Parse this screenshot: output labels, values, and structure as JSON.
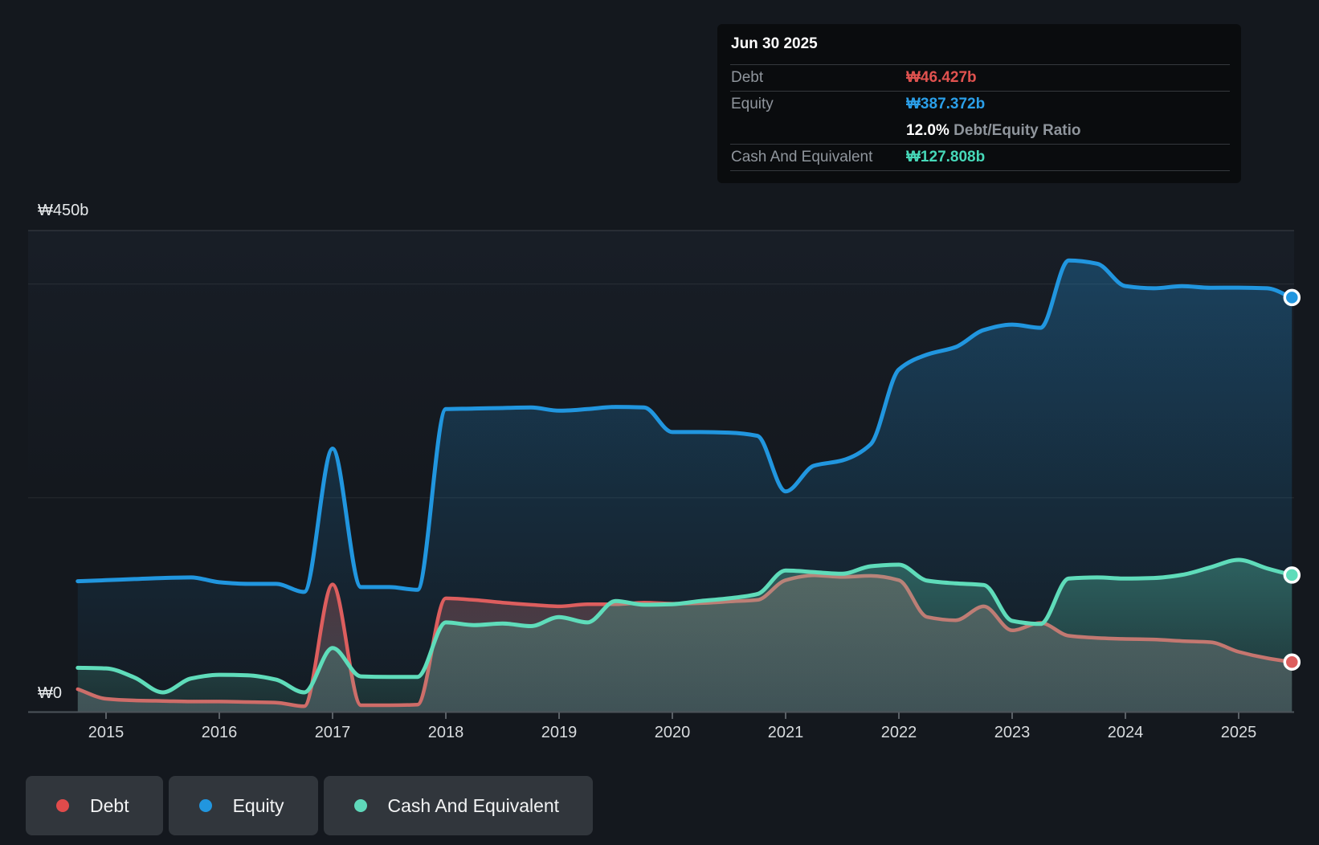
{
  "tooltip": {
    "date": "Jun 30 2025",
    "debt_label": "Debt",
    "debt_value": "₩46.427b",
    "equity_label": "Equity",
    "equity_value": "₩387.372b",
    "ratio_value": "12.0%",
    "ratio_label": "Debt/Equity Ratio",
    "cash_label": "Cash And Equivalent",
    "cash_value": "₩127.808b"
  },
  "axes": {
    "y_top": "₩450b",
    "y_zero": "₩0",
    "years": [
      "2015",
      "2016",
      "2017",
      "2018",
      "2019",
      "2020",
      "2021",
      "2022",
      "2023",
      "2024",
      "2025"
    ]
  },
  "legend": {
    "items": [
      {
        "label": "Debt",
        "color": "#e14b4b"
      },
      {
        "label": "Equity",
        "color": "#2196df"
      },
      {
        "label": "Cash And Equivalent",
        "color": "#5fd8ba"
      }
    ]
  },
  "chart_data": {
    "type": "area",
    "unit": "₩ billions (KRW)",
    "ylim": [
      0,
      450
    ],
    "gridline_values": [
      0,
      200,
      400,
      450
    ],
    "x_tick_years": [
      2015,
      2016,
      2017,
      2018,
      2019,
      2020,
      2021,
      2022,
      2023,
      2024,
      2025
    ],
    "x": [
      2014.75,
      2015.0,
      2015.25,
      2015.5,
      2015.75,
      2016.0,
      2016.25,
      2016.5,
      2016.75,
      2017.0,
      2017.25,
      2017.5,
      2017.75,
      2018.0,
      2018.25,
      2018.5,
      2018.75,
      2019.0,
      2019.25,
      2019.5,
      2019.75,
      2020.0,
      2020.25,
      2020.5,
      2020.75,
      2021.0,
      2021.25,
      2021.5,
      2021.75,
      2022.0,
      2022.25,
      2022.5,
      2022.75,
      2023.0,
      2023.25,
      2023.5,
      2023.75,
      2024.0,
      2024.25,
      2024.5,
      2024.75,
      2025.0,
      2025.25,
      2025.47
    ],
    "series": [
      {
        "name": "Equity",
        "color": "#2196df",
        "values": [
          122,
          123,
          124,
          125,
          125.5,
          121,
          119.5,
          119.5,
          112,
          246,
          116.5,
          116.5,
          114,
          283,
          283.5,
          284,
          284.5,
          281.5,
          283,
          285,
          284.5,
          261.5,
          261.5,
          261,
          258,
          206,
          230,
          235,
          250,
          320,
          334,
          341,
          357,
          362,
          359,
          422,
          419,
          398,
          396,
          398,
          396.5,
          396.6,
          396,
          387.372
        ]
      },
      {
        "name": "Debt",
        "color": "#dd5e5e",
        "values": [
          21,
          12,
          10.5,
          10,
          9.5,
          9.5,
          9,
          8.5,
          5,
          119,
          6,
          6,
          6.5,
          106,
          104.5,
          102,
          100,
          98.5,
          100.5,
          100.5,
          102,
          101,
          101.5,
          103,
          104.5,
          123,
          127.5,
          126,
          127,
          123,
          88.5,
          85.5,
          98.5,
          76,
          83,
          71,
          69,
          68,
          67.5,
          66,
          65,
          56,
          50,
          46.427
        ]
      },
      {
        "name": "Cash And Equivalent",
        "color": "#5fdcba",
        "values": [
          41,
          40.5,
          32,
          18,
          31,
          34.5,
          34,
          30,
          18,
          59.5,
          33,
          32.5,
          32.5,
          83.5,
          81,
          82.5,
          80,
          88.5,
          83.5,
          103.5,
          100,
          100.5,
          103.5,
          106,
          110,
          132,
          130.5,
          129,
          136,
          137.5,
          122.5,
          120,
          118.5,
          85,
          82,
          124.5,
          125.5,
          124.5,
          125,
          128,
          135,
          142,
          134,
          127.808
        ]
      }
    ],
    "last_point": {
      "date": "Jun 30 2025",
      "debt": 46.427,
      "equity": 387.372,
      "cash_and_equivalent": 127.808,
      "debt_equity_ratio_pct": 12.0
    }
  }
}
